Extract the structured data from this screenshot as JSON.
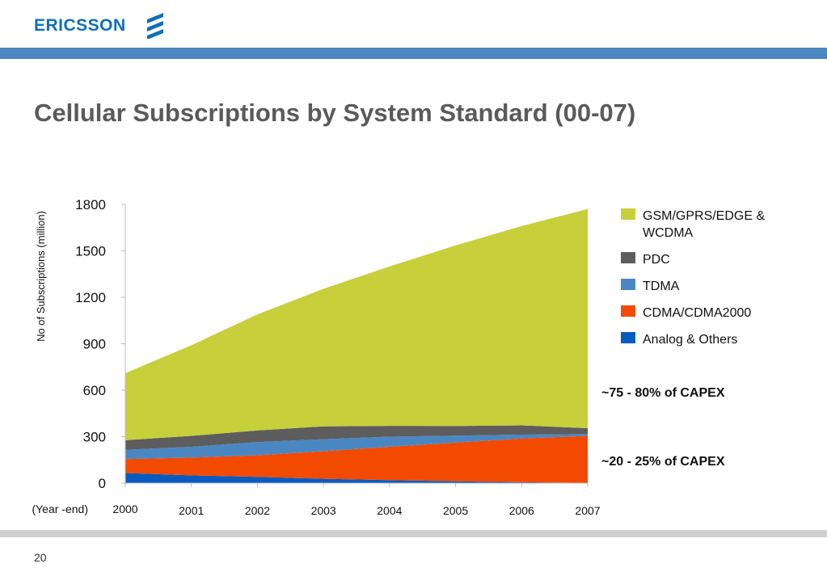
{
  "header": {
    "logo_text": "ERICSSON",
    "logo_icon": "ericsson-stripes-icon",
    "brand_color": "#0e6fb8",
    "bar_color": "#4b87c0"
  },
  "slide": {
    "title": "Cellular Subscriptions by System Standard (00-07)",
    "page_number": "20"
  },
  "chart_data": {
    "type": "area",
    "stacked": true,
    "title": "",
    "ylabel": "No of Subscriptions (million)",
    "xlabel": "(Year -end)",
    "x": [
      "2000",
      "2001",
      "2002",
      "2003",
      "2004",
      "2005",
      "2006",
      "2007"
    ],
    "ylim": [
      0,
      1800
    ],
    "yticks": [
      0,
      300,
      600,
      900,
      1200,
      1500,
      1800
    ],
    "grid": false,
    "legend_position": "right",
    "series": [
      {
        "name": "Analog & Others",
        "color": "#0a5bbf",
        "values": [
          65,
          50,
          40,
          28,
          20,
          12,
          6,
          2
        ]
      },
      {
        "name": "CDMA/CDMA2000",
        "color": "#f24a00",
        "values": [
          90,
          115,
          140,
          178,
          215,
          250,
          282,
          303
        ]
      },
      {
        "name": "TDMA",
        "color": "#4a87c2",
        "values": [
          60,
          70,
          85,
          78,
          65,
          45,
          25,
          12
        ]
      },
      {
        "name": "PDC",
        "color": "#5d5d5d",
        "values": [
          62,
          70,
          75,
          83,
          70,
          62,
          60,
          38
        ]
      },
      {
        "name": "GSM/GPRS/EDGE & WCDMA",
        "color": "#c7cf3a",
        "values": [
          433,
          585,
          750,
          888,
          1030,
          1166,
          1287,
          1415
        ]
      }
    ],
    "legend": [
      {
        "label_lines": [
          "GSM/GPRS/EDGE &",
          "WCDMA"
        ],
        "color": "#c7cf3a"
      },
      {
        "label_lines": [
          "PDC"
        ],
        "color": "#5d5d5d"
      },
      {
        "label_lines": [
          "TDMA"
        ],
        "color": "#4a87c2"
      },
      {
        "label_lines": [
          "CDMA/CDMA2000"
        ],
        "color": "#f24a00"
      },
      {
        "label_lines": [
          "Analog & Others"
        ],
        "color": "#0a5bbf"
      }
    ],
    "annotations": [
      {
        "text": "~75 - 80% of CAPEX",
        "y": 590
      },
      {
        "text": "~20 - 25% of CAPEX",
        "y": 145
      }
    ]
  }
}
